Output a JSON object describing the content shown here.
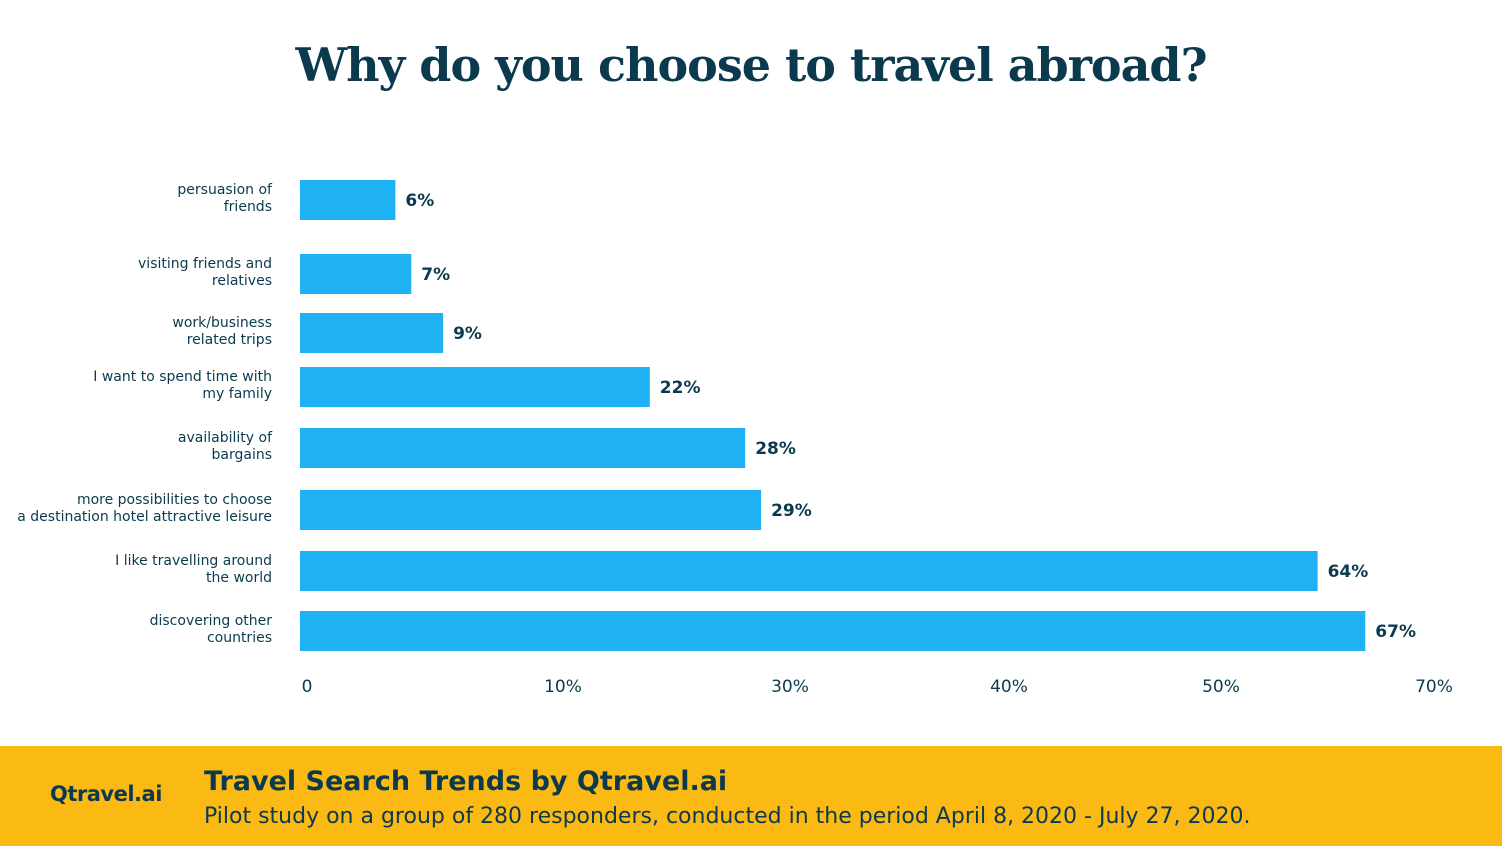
{
  "header": {
    "title": "Why do you choose to travel abroad?"
  },
  "chart_data": {
    "type": "bar",
    "orientation": "horizontal",
    "title": "Why do you choose to travel abroad?",
    "categories": [
      [
        "persuasion of",
        "friends"
      ],
      [
        "visiting friends and",
        "relatives"
      ],
      [
        "work/business",
        "related trips"
      ],
      [
        "I want to spend time with",
        "my family"
      ],
      [
        "availability of",
        "bargains"
      ],
      [
        "more possibilities to choose",
        "a destination hotel attractive leisure"
      ],
      [
        "I like travelling around",
        "the world"
      ],
      [
        "discovering other",
        "countries"
      ]
    ],
    "values": [
      6,
      7,
      9,
      22,
      28,
      29,
      64,
      67
    ],
    "value_labels": [
      "6%",
      "7%",
      "9%",
      "22%",
      "28%",
      "29%",
      "64%",
      "67%"
    ],
    "x_ticks": [
      "0",
      "10%",
      "30%",
      "40%",
      "50%",
      "70%"
    ],
    "xlim": [
      0,
      70
    ],
    "grid": false,
    "bar_color": "#1eb1f4",
    "text_color": "#0b3a4f"
  },
  "footer": {
    "brand": "Qtravel.ai",
    "title": "Travel Search Trends by Qtravel.ai",
    "subtitle": "Pilot study on a group of 280 responders, conducted in the period April 8, 2020 - July 27, 2020.",
    "background": "#fbb914"
  }
}
